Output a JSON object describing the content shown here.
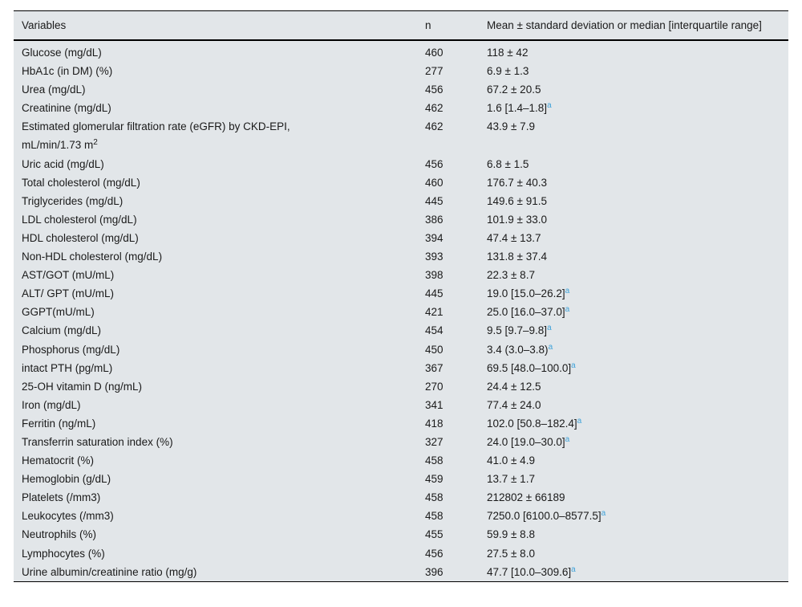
{
  "table": {
    "headers": {
      "variables": "Variables",
      "n": "n",
      "value": "Mean ± standard deviation or median [interquartile range]"
    },
    "footnote_marker": "a",
    "rows": [
      {
        "variable": "Glucose (mg/dL)",
        "n": "460",
        "value": "118 ± 42",
        "value_sup": ""
      },
      {
        "variable": "HbA1c (in DM) (%)",
        "n": "277",
        "value": "6.9 ± 1.3",
        "value_sup": ""
      },
      {
        "variable": "Urea (mg/dL)",
        "n": "456",
        "value": "67.2 ± 20.5",
        "value_sup": ""
      },
      {
        "variable": "Creatinine (mg/dL)",
        "n": "462",
        "value": "1.6 [1.4–1.8]",
        "value_sup": "a"
      },
      {
        "variable": "Estimated glomerular filtration rate (eGFR) by CKD-EPI,",
        "variable2": "mL/min/1.73 m",
        "variable2_sup": "2",
        "n": "462",
        "value": "43.9 ± 7.9",
        "value_sup": ""
      },
      {
        "variable": "Uric acid (mg/dL)",
        "n": "456",
        "value": "6.8 ± 1.5",
        "value_sup": ""
      },
      {
        "variable": "Total cholesterol (mg/dL)",
        "n": "460",
        "value": "176.7 ± 40.3",
        "value_sup": ""
      },
      {
        "variable": "Triglycerides (mg/dL)",
        "n": "445",
        "value": "149.6 ± 91.5",
        "value_sup": ""
      },
      {
        "variable": "LDL cholesterol (mg/dL)",
        "n": "386",
        "value": "101.9 ± 33.0",
        "value_sup": ""
      },
      {
        "variable": "HDL cholesterol (mg/dL)",
        "n": "394",
        "value": "47.4 ± 13.7",
        "value_sup": ""
      },
      {
        "variable": "Non-HDL cholesterol (mg/dL)",
        "n": "393",
        "value": "131.8 ± 37.4",
        "value_sup": ""
      },
      {
        "variable": "AST/GOT (mU/mL)",
        "n": "398",
        "value": "22.3 ± 8.7",
        "value_sup": ""
      },
      {
        "variable": "ALT/ GPT (mU/mL)",
        "n": "445",
        "value": "19.0 [15.0–26.2]",
        "value_sup": "a"
      },
      {
        "variable": "GGPT(mU/mL)",
        "n": "421",
        "value": "25.0 [16.0–37.0]",
        "value_sup": "a"
      },
      {
        "variable": "Calcium (mg/dL)",
        "n": "454",
        "value": "9.5 [9.7–9.8]",
        "value_sup": "a"
      },
      {
        "variable": "Phosphorus (mg/dL)",
        "n": "450",
        "value": "3.4 (3.0–3.8)",
        "value_sup": "a"
      },
      {
        "variable": "intact PTH (pg/mL)",
        "n": "367",
        "value": "69.5 [48.0–100.0]",
        "value_sup": "a"
      },
      {
        "variable": "25-OH vitamin D (ng/mL)",
        "n": "270",
        "value": "24.4 ± 12.5",
        "value_sup": ""
      },
      {
        "variable": "Iron (mg/dL)",
        "n": "341",
        "value": "77.4 ± 24.0",
        "value_sup": ""
      },
      {
        "variable": "Ferritin (ng/mL)",
        "n": "418",
        "value": "102.0 [50.8–182.4]",
        "value_sup": "a"
      },
      {
        "variable": "Transferrin saturation index (%)",
        "n": "327",
        "value": "24.0 [19.0–30.0]",
        "value_sup": "a"
      },
      {
        "variable": "Hematocrit (%)",
        "n": "458",
        "value": "41.0 ± 4.9",
        "value_sup": ""
      },
      {
        "variable": "Hemoglobin (g/dL)",
        "n": "459",
        "value": "13.7 ± 1.7",
        "value_sup": ""
      },
      {
        "variable": "Platelets (/mm3)",
        "n": "458",
        "value": "212802 ± 66189",
        "value_sup": ""
      },
      {
        "variable": "Leukocytes (/mm3)",
        "n": "458",
        "value": "7250.0 [6100.0–8577.5]",
        "value_sup": "a"
      },
      {
        "variable": "Neutrophils (%)",
        "n": "455",
        "value": "59.9 ± 8.8",
        "value_sup": ""
      },
      {
        "variable": "Lymphocytes (%)",
        "n": "456",
        "value": "27.5 ± 8.0",
        "value_sup": ""
      },
      {
        "variable": "Urine albumin/creatinine ratio (mg/g)",
        "n": "396",
        "value": "47.7 [10.0–309.6]",
        "value_sup": "a"
      }
    ],
    "colors": {
      "table_background": "#e2e6e9",
      "text": "#1a1a1a",
      "footnote_blue": "#3fa2d9",
      "rule": "#000000"
    }
  }
}
